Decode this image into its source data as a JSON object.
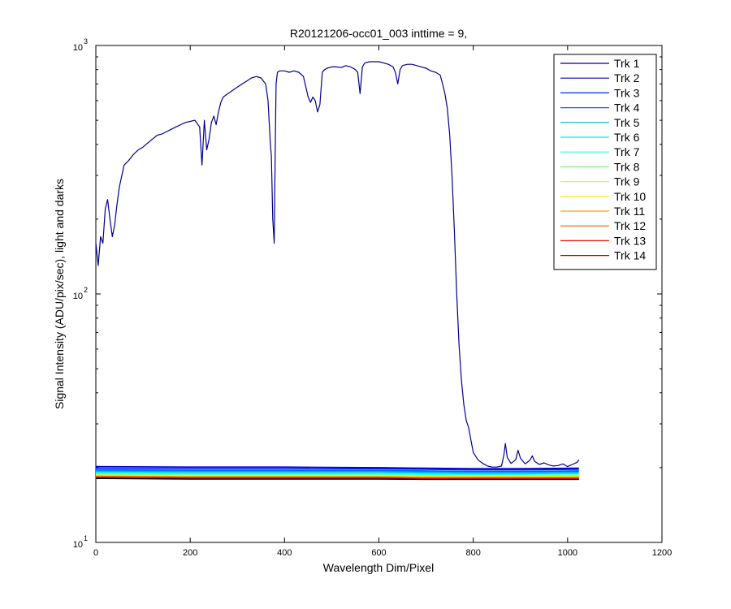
{
  "chart_data": {
    "type": "line",
    "title": "R20121206-occ01_003 inttime = 9,",
    "xlabel": "Wavelength Dim/Pixel",
    "ylabel": "Signal Intensity (ADU/pix/sec), light and darks",
    "xlim": [
      0,
      1200
    ],
    "ylim": [
      10,
      1000
    ],
    "y_scale": "log",
    "grid": false,
    "legend_position": "top-right",
    "x_ticks": [
      "0",
      "200",
      "400",
      "600",
      "800",
      "1000",
      "1200"
    ],
    "y_ticks": [
      {
        "base": "10",
        "exp": "1",
        "value": 10
      },
      {
        "base": "10",
        "exp": "2",
        "value": 100
      },
      {
        "base": "10",
        "exp": "3",
        "value": 1000
      }
    ],
    "series": [
      {
        "name": "Trk 1",
        "color": "#00008f",
        "x": [
          0,
          5,
          10,
          15,
          20,
          25,
          30,
          35,
          40,
          45,
          50,
          60,
          70,
          80,
          90,
          100,
          110,
          120,
          130,
          140,
          150,
          160,
          170,
          180,
          190,
          200,
          210,
          220,
          225,
          230,
          235,
          240,
          245,
          250,
          255,
          260,
          265,
          270,
          280,
          290,
          300,
          310,
          320,
          330,
          340,
          350,
          360,
          365,
          370,
          372,
          375,
          378,
          380,
          382,
          385,
          390,
          400,
          410,
          420,
          430,
          440,
          450,
          455,
          460,
          465,
          470,
          475,
          480,
          485,
          490,
          500,
          510,
          520,
          530,
          540,
          550,
          555,
          560,
          565,
          570,
          580,
          590,
          600,
          610,
          620,
          630,
          635,
          640,
          645,
          650,
          660,
          670,
          680,
          690,
          700,
          710,
          720,
          730,
          735,
          740,
          745,
          750,
          755,
          760,
          765,
          770,
          775,
          780,
          785,
          790,
          800,
          810,
          820,
          830,
          840,
          850,
          860,
          865,
          868,
          872,
          880,
          890,
          895,
          900,
          910,
          920,
          925,
          930,
          940,
          950,
          960,
          970,
          980,
          990,
          1000,
          1010,
          1020,
          1024
        ],
        "y": [
          160,
          130,
          170,
          160,
          220,
          240,
          200,
          170,
          190,
          230,
          270,
          330,
          345,
          365,
          380,
          390,
          405,
          420,
          435,
          440,
          450,
          460,
          470,
          480,
          490,
          495,
          500,
          470,
          330,
          500,
          380,
          420,
          490,
          520,
          480,
          540,
          590,
          620,
          640,
          660,
          680,
          700,
          720,
          740,
          750,
          740,
          700,
          600,
          400,
          360,
          200,
          160,
          340,
          700,
          780,
          790,
          790,
          780,
          790,
          780,
          750,
          620,
          590,
          620,
          600,
          540,
          580,
          780,
          800,
          810,
          820,
          820,
          815,
          830,
          820,
          800,
          780,
          640,
          820,
          850,
          860,
          860,
          860,
          850,
          840,
          820,
          780,
          700,
          800,
          830,
          840,
          840,
          830,
          820,
          810,
          790,
          780,
          760,
          700,
          640,
          560,
          440,
          300,
          180,
          100,
          62,
          45,
          36,
          31,
          29,
          23,
          21.5,
          20.8,
          20.3,
          20.1,
          20.1,
          20.3,
          22.5,
          25,
          22,
          20.8,
          21.5,
          23.5,
          21.8,
          20.7,
          21.4,
          22.3,
          21.2,
          20.6,
          20.9,
          20.5,
          20.3,
          20.4,
          20.7,
          20.2,
          20.6,
          21,
          21.5
        ]
      },
      {
        "name": "Trk 2",
        "color": "#0000c8",
        "x": [
          0,
          200,
          400,
          600,
          700,
          800,
          900,
          1024
        ],
        "y": [
          20.2,
          20.1,
          20.1,
          20.0,
          19.9,
          19.8,
          19.8,
          19.9
        ]
      },
      {
        "name": "Trk 3",
        "color": "#0024ff",
        "x": [
          0,
          200,
          400,
          600,
          700,
          800,
          900,
          1024
        ],
        "y": [
          19.9,
          19.8,
          19.8,
          19.8,
          19.7,
          19.6,
          19.6,
          19.7
        ]
      },
      {
        "name": "Trk 4",
        "color": "#0064ff",
        "x": [
          0,
          200,
          400,
          600,
          700,
          800,
          900,
          1024
        ],
        "y": [
          19.6,
          19.5,
          19.5,
          19.5,
          19.4,
          19.3,
          19.3,
          19.4
        ]
      },
      {
        "name": "Trk 5",
        "color": "#00a8ff",
        "x": [
          0,
          200,
          400,
          600,
          700,
          800,
          900,
          1024
        ],
        "y": [
          19.4,
          19.3,
          19.3,
          19.3,
          19.2,
          19.1,
          19.1,
          19.2
        ]
      },
      {
        "name": "Trk 6",
        "color": "#00e8ff",
        "x": [
          0,
          200,
          400,
          600,
          700,
          800,
          900,
          1024
        ],
        "y": [
          19.2,
          19.1,
          19.1,
          19.1,
          19.0,
          18.9,
          18.9,
          19.0
        ]
      },
      {
        "name": "Trk 7",
        "color": "#30ffd0",
        "x": [
          0,
          200,
          400,
          600,
          700,
          800,
          900,
          1024
        ],
        "y": [
          19.0,
          18.9,
          18.9,
          18.9,
          18.8,
          18.8,
          18.8,
          18.9
        ]
      },
      {
        "name": "Trk 8",
        "color": "#80ff80",
        "x": [
          0,
          200,
          400,
          600,
          700,
          800,
          900,
          1024
        ],
        "y": [
          18.9,
          18.8,
          18.8,
          18.8,
          18.7,
          18.7,
          18.7,
          18.7
        ]
      },
      {
        "name": "Trk 9",
        "color": "#c8ff38",
        "x": [
          0,
          200,
          400,
          600,
          700,
          800,
          900,
          1024
        ],
        "y": [
          18.8,
          18.7,
          18.7,
          18.7,
          18.6,
          18.6,
          18.6,
          18.6
        ]
      },
      {
        "name": "Trk 10",
        "color": "#ffe800",
        "x": [
          0,
          200,
          400,
          600,
          700,
          800,
          900,
          1024
        ],
        "y": [
          18.7,
          18.6,
          18.6,
          18.6,
          18.5,
          18.5,
          18.5,
          18.5
        ]
      },
      {
        "name": "Trk 11",
        "color": "#ffa400",
        "x": [
          0,
          200,
          400,
          600,
          700,
          800,
          900,
          1024
        ],
        "y": [
          18.6,
          18.5,
          18.5,
          18.5,
          18.4,
          18.4,
          18.4,
          18.4
        ]
      },
      {
        "name": "Trk 12",
        "color": "#ff5c00",
        "x": [
          0,
          200,
          400,
          600,
          700,
          800,
          900,
          1024
        ],
        "y": [
          18.5,
          18.4,
          18.4,
          18.4,
          18.3,
          18.3,
          18.3,
          18.3
        ]
      },
      {
        "name": "Trk 13",
        "color": "#f01400",
        "x": [
          0,
          200,
          400,
          600,
          700,
          800,
          900,
          1024
        ],
        "y": [
          18.4,
          18.3,
          18.3,
          18.3,
          18.2,
          18.2,
          18.2,
          18.2
        ]
      },
      {
        "name": "Trk 14",
        "color": "#b00000",
        "x": [
          0,
          200,
          400,
          600,
          700,
          800,
          900,
          1024
        ],
        "y": [
          18.3,
          18.2,
          18.2,
          18.2,
          18.1,
          18.1,
          18.1,
          18.1
        ]
      },
      {
        "color": "#000000",
        "x": [
          0,
          200,
          400,
          600,
          700,
          800,
          900,
          1024
        ],
        "y": [
          18.1,
          18.0,
          18.0,
          18.0,
          17.95,
          17.95,
          17.95,
          17.95
        ]
      }
    ]
  }
}
